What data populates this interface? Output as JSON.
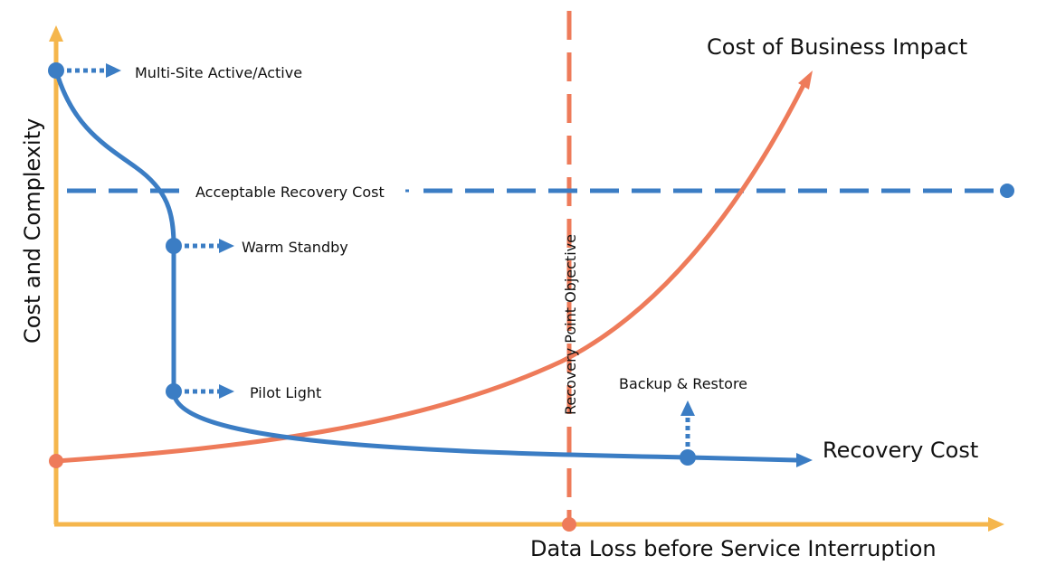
{
  "axes": {
    "x_label": "Data Loss before Service Interruption",
    "y_label": "Cost and Complexity"
  },
  "curves": {
    "recovery_cost": "Recovery Cost",
    "business_impact": "Cost of Business Impact"
  },
  "thresholds": {
    "acceptable_cost": "Acceptable Recovery Cost",
    "rpo": "Recovery Point Objective"
  },
  "strategies": {
    "multi_site": "Multi-Site Active/Active",
    "warm_standby": "Warm Standby",
    "pilot_light": "Pilot Light",
    "backup_restore": "Backup & Restore"
  },
  "colors": {
    "axis": "#f5b64c",
    "blue": "#3b7dc4",
    "orange": "#ee7b5a",
    "text": "#111111"
  }
}
